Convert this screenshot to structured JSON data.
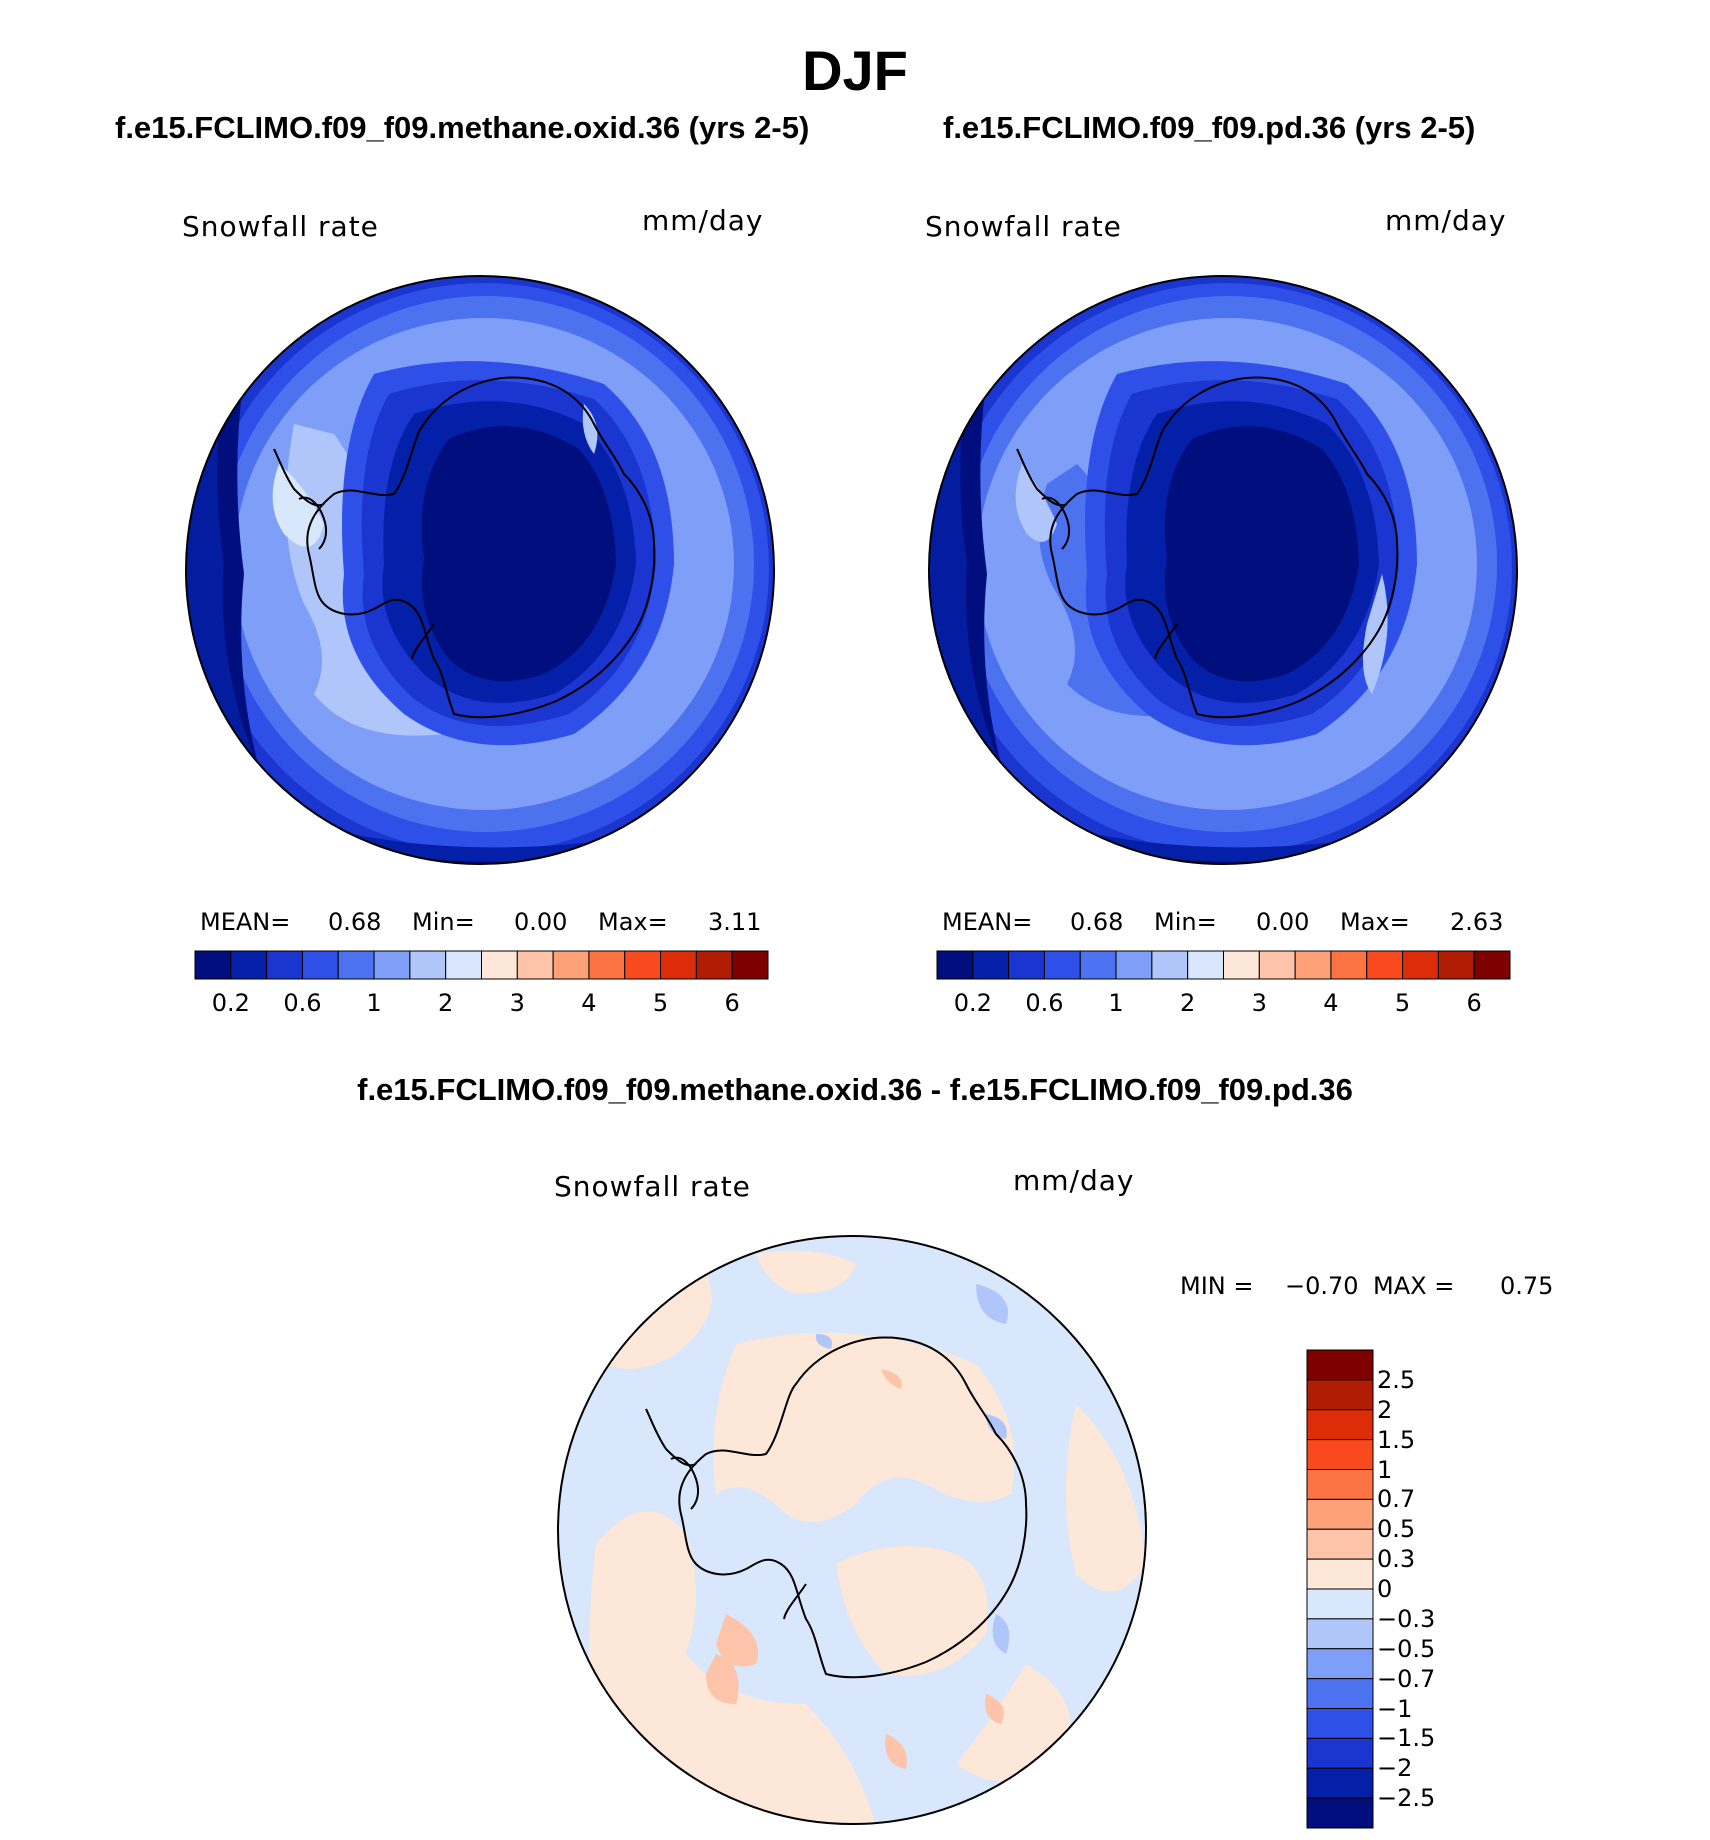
{
  "page": {
    "title": "DJF",
    "diff_title": "f.e15.FCLIMO.f09_f09.methane.oxid.36 - f.e15.FCLIMO.f09_f09.pd.36"
  },
  "panels": [
    {
      "case_title": "f.e15.FCLIMO.f09_f09.methane.oxid.36 (yrs 2-5)",
      "variable": "Snowfall rate",
      "units": "mm/day",
      "stats": {
        "mean_label": "MEAN=",
        "mean": "0.68",
        "min_label": "Min=",
        "min": "0.00",
        "max_label": "Max=",
        "max": "3.11"
      }
    },
    {
      "case_title": "f.e15.FCLIMO.f09_f09.pd.36 (yrs 2-5)",
      "variable": "Snowfall rate",
      "units": "mm/day",
      "stats": {
        "mean_label": "MEAN=",
        "mean": "0.68",
        "min_label": "Min=",
        "min": "0.00",
        "max_label": "Max=",
        "max": "2.63"
      }
    },
    {
      "variable": "Snowfall rate",
      "units": "mm/day",
      "stats": {
        "min_label": "MIN =",
        "min": "−0.70",
        "max_label": "MAX =",
        "max": "0.75"
      }
    }
  ],
  "colorbar_field": {
    "colors": [
      "#000e7e",
      "#0520a8",
      "#1a35d0",
      "#2f50e8",
      "#4d72f0",
      "#7e9ef8",
      "#b0c6fb",
      "#d8e7fc",
      "#fde7d8",
      "#fdc4a9",
      "#fda178",
      "#fc7344",
      "#f84a1e",
      "#dc2d08",
      "#b01c04",
      "#7e0000"
    ],
    "tick_labels": [
      "0.2",
      "0.6",
      "1",
      "2",
      "3",
      "4",
      "5",
      "6"
    ]
  },
  "colorbar_diff": {
    "colors": [
      "#000e7e",
      "#0520a8",
      "#1a35d0",
      "#2f50e8",
      "#4d72f0",
      "#7e9ef8",
      "#b0c6fb",
      "#d8e7fc",
      "#fde7d8",
      "#fdc4a9",
      "#fda178",
      "#fc7344",
      "#f84a1e",
      "#dc2d08",
      "#b01c04",
      "#7e0000"
    ],
    "tick_labels": [
      "2.5",
      "2",
      "1.5",
      "1",
      "0.7",
      "0.5",
      "0.3",
      "0",
      "−0.3",
      "−0.5",
      "−0.7",
      "−1",
      "−1.5",
      "−2",
      "−2.5"
    ]
  }
}
